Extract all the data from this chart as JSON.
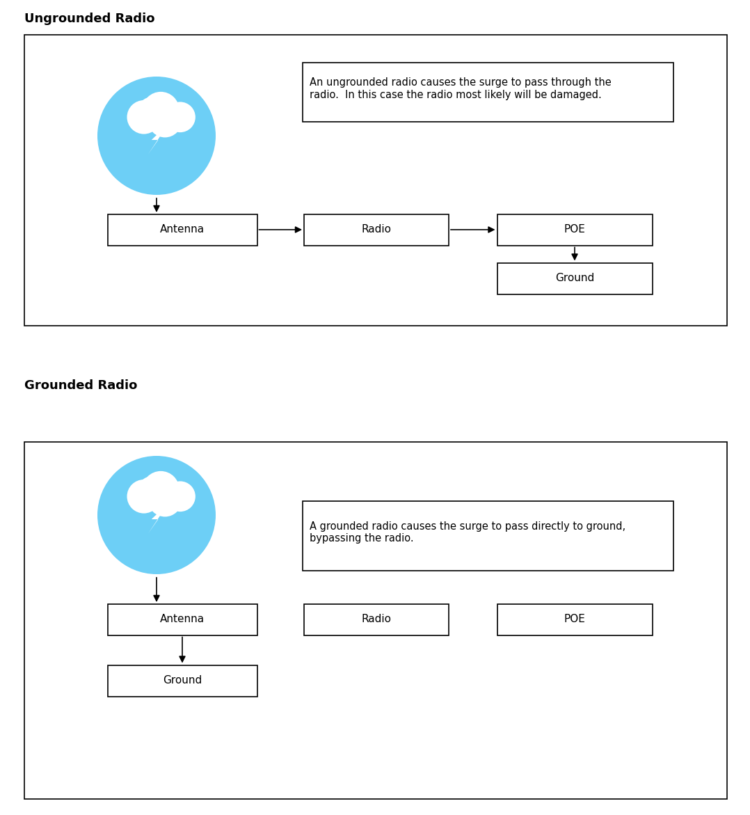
{
  "title1": "Ungrounded Radio",
  "title2": "Grounded Radio",
  "bg_color": "#ffffff",
  "box_color": "#ffffff",
  "box_edge": "#000000",
  "text_color": "#000000",
  "circle_color": "#6dcff6",
  "panel1_text": "An ungrounded radio causes the surge to pass through the\nradio.  In this case the radio most likely will be damaged.",
  "panel2_text": "A grounded radio causes the surge to pass directly to ground,\nbypassing the radio.",
  "title_fontsize": 13,
  "label_fontsize": 11,
  "note_fontsize": 10.5
}
